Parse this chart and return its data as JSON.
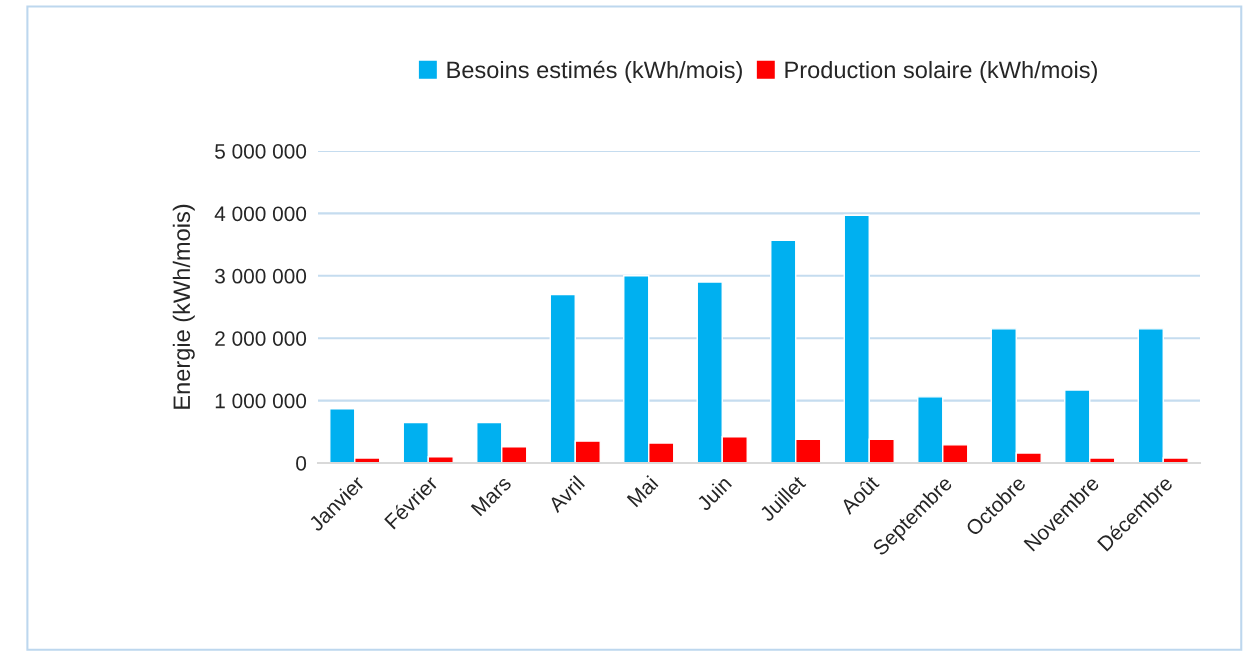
{
  "chart_data": {
    "type": "bar",
    "ylabel": "Energie (kWh/mois)",
    "categories": [
      "Janvier",
      "Février",
      "Mars",
      "Avril",
      "Mai",
      "Juin",
      "Juillet",
      "Août",
      "Septembre",
      "Octobre",
      "Novembre",
      "Décembre"
    ],
    "series": [
      {
        "name": "Besoins estimés (kWh/mois)",
        "color": "#00b0f0",
        "values": [
          870000,
          650000,
          650000,
          2700000,
          3000000,
          2900000,
          3570000,
          3970000,
          1060000,
          2150000,
          1170000,
          2150000
        ]
      },
      {
        "name": "Production solaire (kWh/mois)",
        "color": "#ff0000",
        "values": [
          80000,
          100000,
          260000,
          350000,
          320000,
          420000,
          380000,
          380000,
          290000,
          160000,
          80000,
          80000
        ]
      }
    ],
    "ylim": [
      0,
      5000000
    ],
    "yticks": [
      0,
      {
        "value": 1000000,
        "label": "1 000 000"
      },
      {
        "value": 2000000,
        "label": "2 000 000"
      },
      {
        "value": 3000000,
        "label": "3 000 000"
      },
      {
        "value": 4000000,
        "label": "4 000 000"
      },
      {
        "value": 5000000,
        "label": "5 000 000"
      }
    ],
    "grid": "y",
    "legend": "top"
  }
}
